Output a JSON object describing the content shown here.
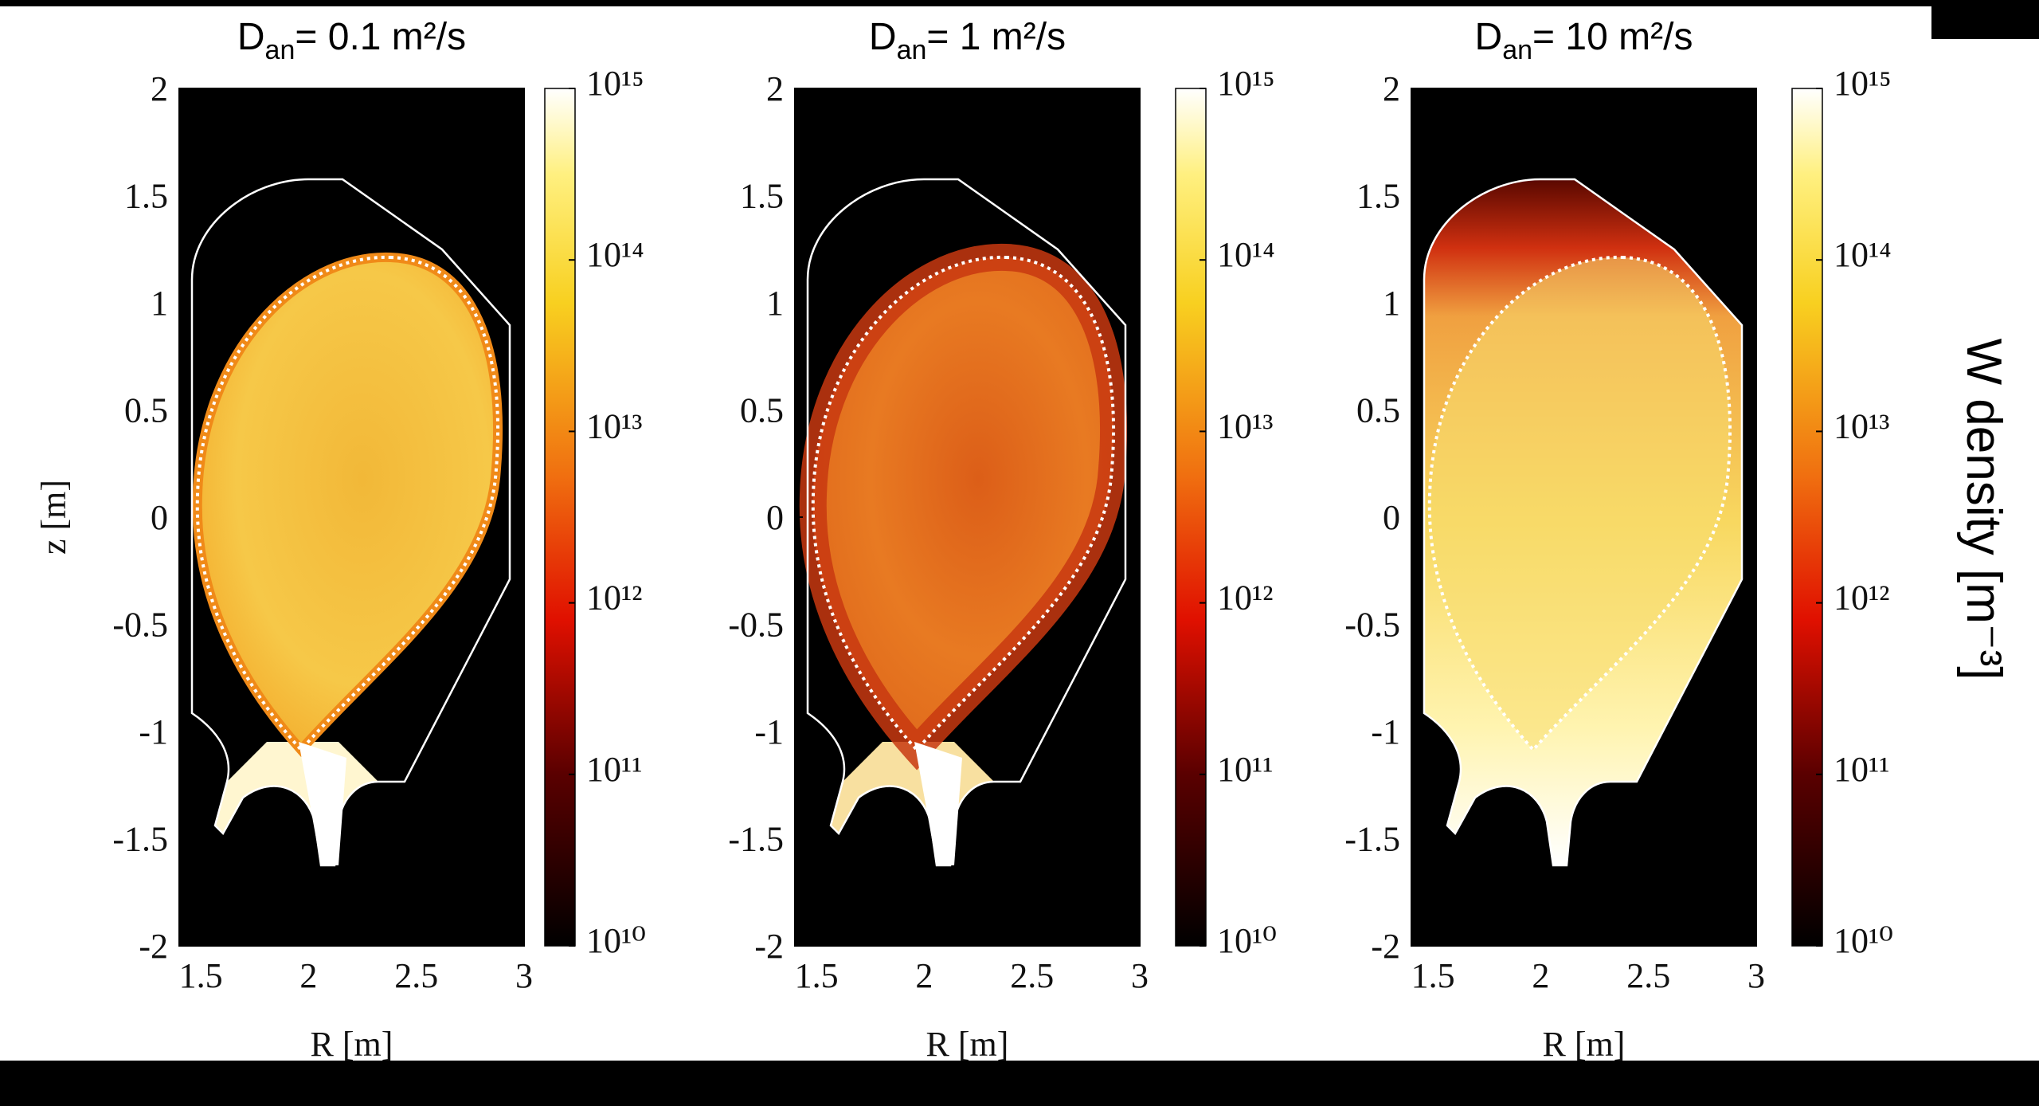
{
  "chart_data": [
    {
      "type": "heatmap",
      "title": {
        "symbol": "D",
        "subscript": "an",
        "text": "= 0.1 m²/s"
      },
      "xlabel": "R [m]",
      "ylabel": "z [m]",
      "xlim": [
        1.4,
        3
      ],
      "ylim": [
        -2,
        2
      ],
      "xticks": [
        1.5,
        2,
        2.5,
        3
      ],
      "yticks": [
        -2,
        -1.5,
        -1,
        -0.5,
        0,
        0.5,
        1,
        1.5,
        2
      ],
      "colorbar": {
        "log": true,
        "zlim": [
          10000000000,
          1000000000000000
        ],
        "zticks": [
          {
            "value": 10000000000,
            "label": "10¹⁰"
          },
          {
            "value": 100000000000,
            "label": "10¹¹"
          },
          {
            "value": 1000000000000,
            "label": "10¹²"
          },
          {
            "value": 10000000000000,
            "label": "10¹³"
          },
          {
            "value": 100000000000000,
            "label": "10¹⁴"
          },
          {
            "value": 1000000000000000,
            "label": "10¹⁵"
          }
        ]
      }
    },
    {
      "type": "heatmap",
      "title": {
        "symbol": "D",
        "subscript": "an",
        "text": "= 1 m²/s"
      },
      "xlabel": "R [m]",
      "xlim": [
        1.4,
        3
      ],
      "ylim": [
        -2,
        2
      ],
      "xticks": [
        1.5,
        2,
        2.5,
        3
      ],
      "yticks": [
        -2,
        -1.5,
        -1,
        -0.5,
        0,
        0.5,
        1,
        1.5,
        2
      ],
      "colorbar": {
        "log": true,
        "zlim": [
          10000000000,
          1000000000000000
        ],
        "zticks": [
          {
            "value": 10000000000,
            "label": "10¹⁰"
          },
          {
            "value": 100000000000,
            "label": "10¹¹"
          },
          {
            "value": 1000000000000,
            "label": "10¹²"
          },
          {
            "value": 10000000000000,
            "label": "10¹³"
          },
          {
            "value": 100000000000000,
            "label": "10¹⁴"
          },
          {
            "value": 1000000000000000,
            "label": "10¹⁵"
          }
        ]
      }
    },
    {
      "type": "heatmap",
      "title": {
        "symbol": "D",
        "subscript": "an",
        "text": "= 10 m²/s"
      },
      "xlabel": "R [m]",
      "xlim": [
        1.4,
        3
      ],
      "ylim": [
        -2,
        2
      ],
      "xticks": [
        1.5,
        2,
        2.5,
        3
      ],
      "yticks": [
        -2,
        -1.5,
        -1,
        -0.5,
        0,
        0.5,
        1,
        1.5,
        2
      ],
      "colorbar": {
        "log": true,
        "zlim": [
          10000000000,
          1000000000000000
        ],
        "label": "W density [m⁻³]",
        "zticks": [
          {
            "value": 10000000000,
            "label": "10¹⁰"
          },
          {
            "value": 100000000000,
            "label": "10¹¹"
          },
          {
            "value": 1000000000000,
            "label": "10¹²"
          },
          {
            "value": 10000000000000,
            "label": "10¹³"
          },
          {
            "value": 100000000000000,
            "label": "10¹⁴"
          },
          {
            "value": 1000000000000000,
            "label": "10¹⁵"
          }
        ]
      }
    }
  ]
}
